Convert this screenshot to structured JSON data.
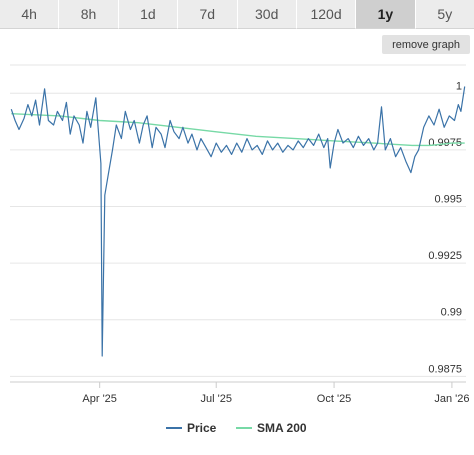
{
  "tabs": [
    {
      "label": "4h",
      "active": false
    },
    {
      "label": "8h",
      "active": false
    },
    {
      "label": "1d",
      "active": false
    },
    {
      "label": "7d",
      "active": false
    },
    {
      "label": "30d",
      "active": false
    },
    {
      "label": "120d",
      "active": false
    },
    {
      "label": "1y",
      "active": true
    },
    {
      "label": "5y",
      "active": false
    }
  ],
  "remove_graph_label": "remove graph",
  "chart_data": {
    "type": "line",
    "ylim": [
      0.9875,
      1.0
    ],
    "yticks": [
      "1",
      "0.9975",
      "0.995",
      "0.9925",
      "0.99",
      "0.9875"
    ],
    "xticks": [
      {
        "label": "Apr '25",
        "date": "2025-04-01"
      },
      {
        "label": "Jul '25",
        "date": "2025-07-01"
      },
      {
        "label": "Oct '25",
        "date": "2025-10-01"
      },
      {
        "label": "Jan '26",
        "date": "2026-01-01"
      }
    ],
    "grid": true,
    "legend_position": "bottom-center",
    "series": [
      {
        "name": "Price",
        "color": "#3b73a8",
        "points": [
          [
            "2025-01-22",
            0.9993
          ],
          [
            "2025-01-25",
            0.9988
          ],
          [
            "2025-01-28",
            0.9984
          ],
          [
            "2025-02-01",
            0.9989
          ],
          [
            "2025-02-04",
            0.9995
          ],
          [
            "2025-02-07",
            0.999
          ],
          [
            "2025-02-10",
            0.9997
          ],
          [
            "2025-02-13",
            0.9986
          ],
          [
            "2025-02-17",
            1.0002
          ],
          [
            "2025-02-20",
            0.9988
          ],
          [
            "2025-02-24",
            0.9986
          ],
          [
            "2025-02-27",
            0.9992
          ],
          [
            "2025-03-03",
            0.9988
          ],
          [
            "2025-03-06",
            0.9996
          ],
          [
            "2025-03-09",
            0.9982
          ],
          [
            "2025-03-12",
            0.999
          ],
          [
            "2025-03-16",
            0.9986
          ],
          [
            "2025-03-19",
            0.9978
          ],
          [
            "2025-03-22",
            0.9992
          ],
          [
            "2025-03-25",
            0.9985
          ],
          [
            "2025-03-29",
            0.9998
          ],
          [
            "2025-04-02",
            0.9969
          ],
          [
            "2025-04-03",
            0.9884
          ],
          [
            "2025-04-05",
            0.9955
          ],
          [
            "2025-04-08",
            0.9965
          ],
          [
            "2025-04-11",
            0.9975
          ],
          [
            "2025-04-14",
            0.9986
          ],
          [
            "2025-04-18",
            0.998
          ],
          [
            "2025-04-21",
            0.9992
          ],
          [
            "2025-04-25",
            0.9984
          ],
          [
            "2025-04-28",
            0.9988
          ],
          [
            "2025-05-02",
            0.9978
          ],
          [
            "2025-05-05",
            0.9986
          ],
          [
            "2025-05-08",
            0.999
          ],
          [
            "2025-05-12",
            0.9976
          ],
          [
            "2025-05-15",
            0.9985
          ],
          [
            "2025-05-19",
            0.9982
          ],
          [
            "2025-05-22",
            0.9976
          ],
          [
            "2025-05-26",
            0.9988
          ],
          [
            "2025-05-29",
            0.9983
          ],
          [
            "2025-06-02",
            0.998
          ],
          [
            "2025-06-05",
            0.9985
          ],
          [
            "2025-06-09",
            0.9978
          ],
          [
            "2025-06-12",
            0.9982
          ],
          [
            "2025-06-16",
            0.9975
          ],
          [
            "2025-06-19",
            0.998
          ],
          [
            "2025-06-23",
            0.9976
          ],
          [
            "2025-06-27",
            0.9972
          ],
          [
            "2025-07-01",
            0.9978
          ],
          [
            "2025-07-05",
            0.9974
          ],
          [
            "2025-07-09",
            0.9977
          ],
          [
            "2025-07-13",
            0.9973
          ],
          [
            "2025-07-17",
            0.9978
          ],
          [
            "2025-07-21",
            0.9974
          ],
          [
            "2025-07-25",
            0.998
          ],
          [
            "2025-07-29",
            0.9975
          ],
          [
            "2025-08-02",
            0.9977
          ],
          [
            "2025-08-06",
            0.9973
          ],
          [
            "2025-08-10",
            0.9979
          ],
          [
            "2025-08-14",
            0.9975
          ],
          [
            "2025-08-18",
            0.9978
          ],
          [
            "2025-08-22",
            0.9974
          ],
          [
            "2025-08-26",
            0.9977
          ],
          [
            "2025-08-30",
            0.9975
          ],
          [
            "2025-09-03",
            0.9979
          ],
          [
            "2025-09-07",
            0.9976
          ],
          [
            "2025-09-11",
            0.998
          ],
          [
            "2025-09-15",
            0.9977
          ],
          [
            "2025-09-19",
            0.9982
          ],
          [
            "2025-09-23",
            0.9976
          ],
          [
            "2025-09-26",
            0.998
          ],
          [
            "2025-09-28",
            0.9967
          ],
          [
            "2025-10-01",
            0.9978
          ],
          [
            "2025-10-04",
            0.9984
          ],
          [
            "2025-10-08",
            0.9978
          ],
          [
            "2025-10-12",
            0.998
          ],
          [
            "2025-10-16",
            0.9976
          ],
          [
            "2025-10-20",
            0.9981
          ],
          [
            "2025-10-24",
            0.9977
          ],
          [
            "2025-10-28",
            0.998
          ],
          [
            "2025-11-01",
            0.9975
          ],
          [
            "2025-11-04",
            0.9978
          ],
          [
            "2025-11-07",
            0.9994
          ],
          [
            "2025-11-10",
            0.9975
          ],
          [
            "2025-11-14",
            0.998
          ],
          [
            "2025-11-18",
            0.9972
          ],
          [
            "2025-11-22",
            0.9976
          ],
          [
            "2025-11-26",
            0.997
          ],
          [
            "2025-11-30",
            0.9965
          ],
          [
            "2025-12-03",
            0.9972
          ],
          [
            "2025-12-06",
            0.9975
          ],
          [
            "2025-12-10",
            0.9985
          ],
          [
            "2025-12-14",
            0.999
          ],
          [
            "2025-12-18",
            0.9986
          ],
          [
            "2025-12-22",
            0.9993
          ],
          [
            "2025-12-26",
            0.9985
          ],
          [
            "2025-12-30",
            0.999
          ],
          [
            "2026-01-03",
            0.9988
          ],
          [
            "2026-01-06",
            0.9995
          ],
          [
            "2026-01-08",
            0.9992
          ],
          [
            "2026-01-11",
            1.0003
          ]
        ]
      },
      {
        "name": "SMA 200",
        "color": "#77d9a6",
        "points": [
          [
            "2025-01-22",
            0.9991
          ],
          [
            "2025-03-01",
            0.999
          ],
          [
            "2025-04-01",
            0.9988
          ],
          [
            "2025-05-01",
            0.9987
          ],
          [
            "2025-06-01",
            0.9985
          ],
          [
            "2025-07-01",
            0.9983
          ],
          [
            "2025-08-01",
            0.9981
          ],
          [
            "2025-09-01",
            0.998
          ],
          [
            "2025-10-01",
            0.9979
          ],
          [
            "2025-11-01",
            0.9978
          ],
          [
            "2025-12-01",
            0.9977
          ],
          [
            "2025-12-15",
            0.9977
          ],
          [
            "2026-01-01",
            0.9978
          ],
          [
            "2026-01-11",
            0.9978
          ]
        ]
      }
    ]
  }
}
